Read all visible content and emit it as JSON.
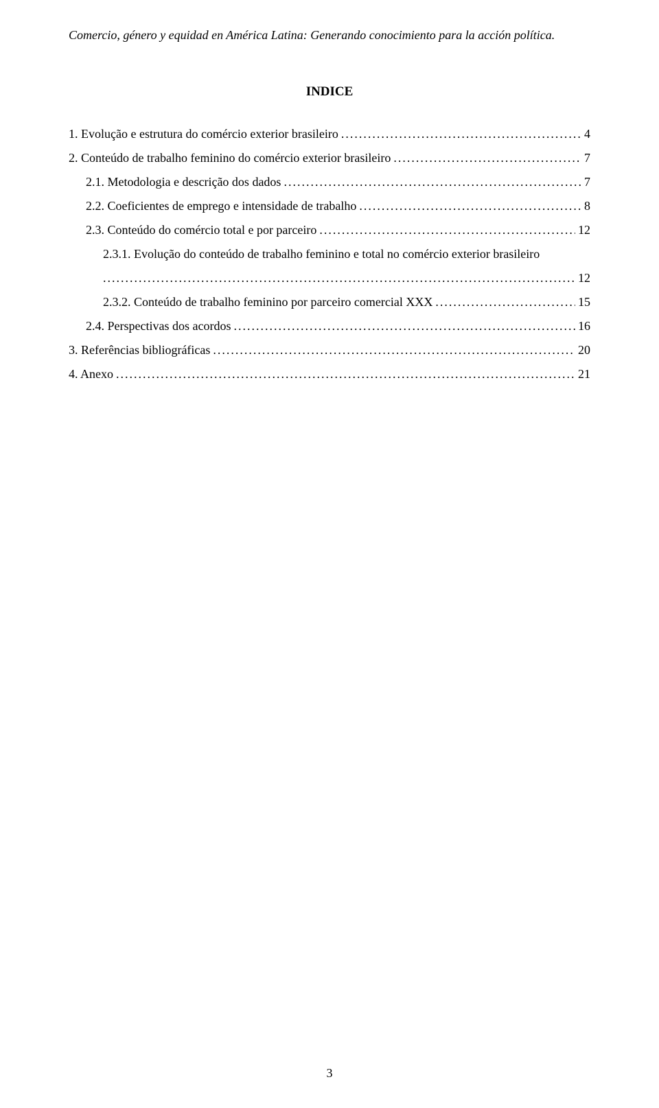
{
  "header": "Comercio, género y equidad en América Latina: Generando conocimiento para la acción política.",
  "title": "INDICE",
  "toc": [
    {
      "label": "1. Evolução e estrutura do comércio exterior brasileiro",
      "page": "4",
      "indent": 0
    },
    {
      "label": "2. Conteúdo de trabalho feminino do comércio exterior brasileiro",
      "page": "7",
      "indent": 0
    },
    {
      "label": "2.1. Metodologia e descrição dos dados",
      "page": "7",
      "indent": 1
    },
    {
      "label": "2.2. Coeficientes de emprego e intensidade de trabalho",
      "page": "8",
      "indent": 1
    },
    {
      "label": "2.3. Conteúdo do comércio total e por parceiro",
      "page": "12",
      "indent": 1
    },
    {
      "label": "2.3.1. Evolução do conteúdo de trabalho feminino e total no comércio exterior brasileiro",
      "page": "12",
      "indent": 2,
      "wrap": true
    },
    {
      "label": "2.3.2. Conteúdo de trabalho feminino por parceiro comercial XXX",
      "page": "15",
      "indent": 2
    },
    {
      "label": "2.4. Perspectivas dos acordos",
      "page": "16",
      "indent": 1
    },
    {
      "label": "3. Referências bibliográficas",
      "page": "20",
      "indent": 0
    },
    {
      "label": "4. Anexo",
      "page": "21",
      "indent": 0
    }
  ],
  "pageNumber": "3"
}
